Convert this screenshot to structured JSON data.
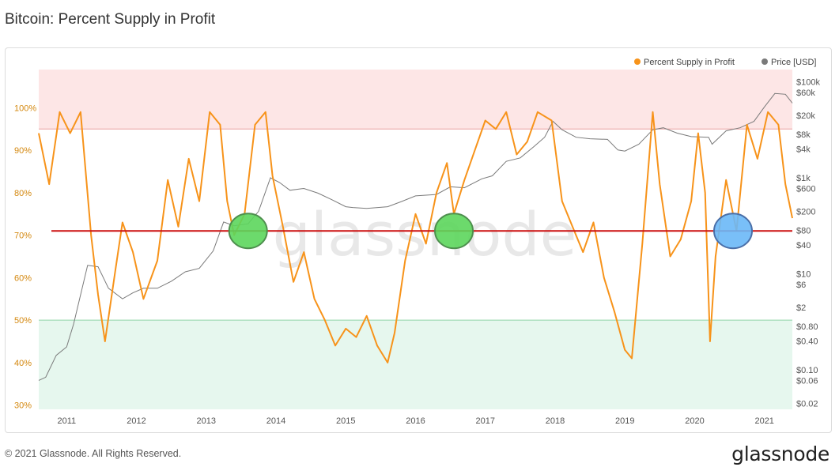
{
  "page": {
    "title": "Bitcoin: Percent Supply in Profit",
    "copyright": "© 2021 Glassnode. All Rights Reserved.",
    "brand": "glassnode"
  },
  "colors": {
    "supply": "#f7931a",
    "price": "#7a7a7a",
    "upper_zone": "#fde6e6",
    "lower_zone": "#e6f7ee",
    "threshold_upper": "#e8a0a0",
    "threshold_lower": "#8fd4a8",
    "ref_line": "#cc1111",
    "green_marker": "#5cd65c",
    "blue_marker": "#6ab8f7",
    "left_tick": "#d4880f"
  },
  "chart_data": {
    "type": "line",
    "legend": {
      "placement": "top-right",
      "entries": [
        "Percent Supply in Profit",
        "Price [USD]"
      ]
    },
    "x_ticks": [
      "2011",
      "2012",
      "2013",
      "2014",
      "2015",
      "2016",
      "2017",
      "2018",
      "2019",
      "2020",
      "2021"
    ],
    "x_range": [
      2010.6,
      2021.4
    ],
    "left_axis": {
      "ticks": [
        "30%",
        "40%",
        "50%",
        "60%",
        "70%",
        "80%",
        "90%",
        "100%"
      ],
      "values": [
        30,
        40,
        50,
        60,
        70,
        80,
        90,
        100
      ],
      "range": [
        29,
        109
      ]
    },
    "right_axis": {
      "scale": "log",
      "ticks": [
        "$0.02",
        "$0.06",
        "$0.10",
        "$0.40",
        "$0.80",
        "$2",
        "$6",
        "$10",
        "$40",
        "$80",
        "$200",
        "$600",
        "$1k",
        "$4k",
        "$8k",
        "$20k",
        "$60k",
        "$100k"
      ],
      "values": [
        0.02,
        0.06,
        0.1,
        0.4,
        0.8,
        2,
        6,
        10,
        40,
        80,
        200,
        600,
        1000,
        4000,
        8000,
        20000,
        60000,
        100000
      ],
      "range": [
        0.015,
        180000
      ]
    },
    "zones": {
      "upper_threshold": 95,
      "lower_threshold": 50
    },
    "reference_line": 71,
    "markers": [
      {
        "x": 2013.6,
        "y": 71,
        "color": "green"
      },
      {
        "x": 2016.55,
        "y": 71,
        "color": "green"
      },
      {
        "x": 2020.55,
        "y": 71,
        "color": "blue"
      }
    ],
    "series": [
      {
        "name": "Percent Supply in Profit",
        "axis": "left",
        "x": [
          2010.6,
          2010.75,
          2010.9,
          2011.05,
          2011.2,
          2011.35,
          2011.45,
          2011.55,
          2011.7,
          2011.8,
          2011.95,
          2012.1,
          2012.3,
          2012.45,
          2012.6,
          2012.75,
          2012.9,
          2013.05,
          2013.2,
          2013.3,
          2013.4,
          2013.55,
          2013.7,
          2013.85,
          2013.95,
          2014.1,
          2014.25,
          2014.4,
          2014.55,
          2014.7,
          2014.85,
          2015.0,
          2015.15,
          2015.3,
          2015.45,
          2015.6,
          2015.7,
          2015.85,
          2016.0,
          2016.15,
          2016.3,
          2016.45,
          2016.55,
          2016.7,
          2016.85,
          2017.0,
          2017.15,
          2017.3,
          2017.45,
          2017.6,
          2017.75,
          2017.95,
          2018.1,
          2018.25,
          2018.4,
          2018.55,
          2018.7,
          2018.85,
          2019.0,
          2019.1,
          2019.25,
          2019.4,
          2019.5,
          2019.65,
          2019.8,
          2019.95,
          2020.05,
          2020.15,
          2020.22,
          2020.3,
          2020.45,
          2020.6,
          2020.75,
          2020.9,
          2021.05,
          2021.2,
          2021.3,
          2021.4
        ],
        "values": [
          94,
          82,
          99,
          94,
          99,
          70,
          56,
          45,
          62,
          73,
          66,
          55,
          64,
          83,
          72,
          88,
          78,
          99,
          96,
          78,
          70,
          75,
          96,
          99,
          84,
          72,
          59,
          66,
          55,
          50,
          44,
          48,
          46,
          51,
          44,
          40,
          47,
          64,
          75,
          68,
          80,
          87,
          75,
          83,
          90,
          97,
          95,
          99,
          89,
          92,
          99,
          97,
          78,
          72,
          66,
          73,
          60,
          52,
          43,
          41,
          68,
          99,
          82,
          65,
          69,
          78,
          94,
          80,
          45,
          65,
          83,
          71,
          96,
          88,
          99,
          96,
          82,
          74
        ]
      },
      {
        "name": "Price [USD]",
        "axis": "right",
        "x": [
          2010.6,
          2010.7,
          2010.85,
          2011.0,
          2011.1,
          2011.3,
          2011.45,
          2011.6,
          2011.8,
          2011.95,
          2012.1,
          2012.3,
          2012.5,
          2012.7,
          2012.9,
          2013.1,
          2013.25,
          2013.4,
          2013.6,
          2013.75,
          2013.92,
          2014.05,
          2014.2,
          2014.4,
          2014.6,
          2014.8,
          2015.0,
          2015.1,
          2015.3,
          2015.6,
          2015.8,
          2016.0,
          2016.3,
          2016.5,
          2016.7,
          2016.95,
          2017.1,
          2017.3,
          2017.5,
          2017.7,
          2017.85,
          2017.97,
          2018.1,
          2018.3,
          2018.5,
          2018.75,
          2018.9,
          2019.0,
          2019.2,
          2019.4,
          2019.55,
          2019.75,
          2019.95,
          2020.2,
          2020.25,
          2020.45,
          2020.65,
          2020.85,
          2021.0,
          2021.15,
          2021.3,
          2021.4
        ],
        "values": [
          0.06,
          0.07,
          0.2,
          0.3,
          0.9,
          15,
          14,
          5,
          3,
          4,
          5,
          5,
          7,
          11,
          13,
          30,
          120,
          100,
          110,
          200,
          1000,
          800,
          550,
          600,
          480,
          350,
          250,
          240,
          230,
          250,
          320,
          420,
          450,
          650,
          620,
          950,
          1100,
          2200,
          2600,
          4500,
          7000,
          15000,
          10000,
          7000,
          6500,
          6300,
          3800,
          3600,
          5000,
          10000,
          11000,
          8500,
          7200,
          7000,
          5000,
          9500,
          11000,
          15000,
          30000,
          57000,
          55000,
          36000
        ]
      }
    ]
  }
}
